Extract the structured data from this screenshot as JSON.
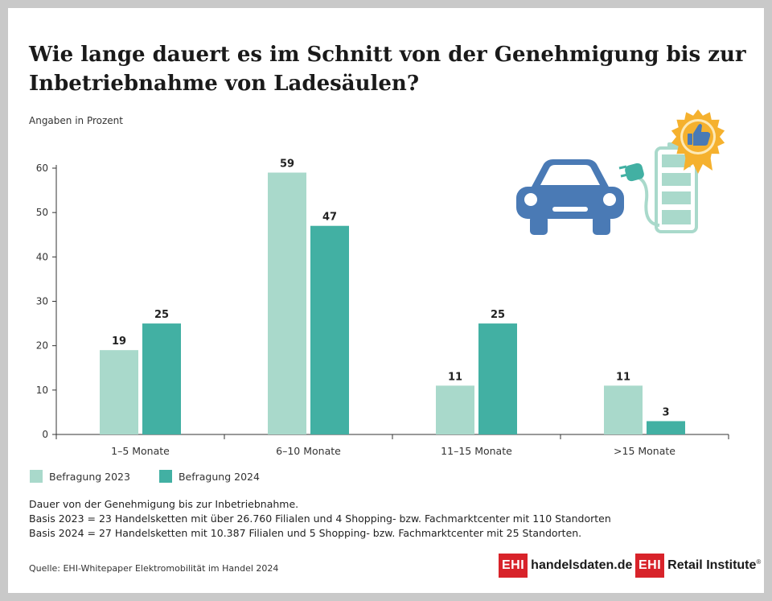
{
  "title": "Wie lange dauert es im Schnitt von der Genehmigung bis zur Inbetriebnahme von Ladesäulen?",
  "unit_label": "Angaben in Prozent",
  "chart_data": {
    "type": "bar",
    "categories": [
      "1–5 Monate",
      "6–10 Monate",
      "11–15 Monate",
      ">15 Monate"
    ],
    "series": [
      {
        "name": "Befragung 2023",
        "values": [
          19,
          59,
          11,
          11
        ],
        "color": "#a9d9cb"
      },
      {
        "name": "Befragung 2024",
        "values": [
          25,
          47,
          25,
          3
        ],
        "color": "#42b0a3"
      }
    ],
    "ylim": [
      0,
      60
    ],
    "yticks": [
      0,
      10,
      20,
      30,
      40,
      50,
      60
    ],
    "grid": false,
    "legend": "bottom-left"
  },
  "notes": [
    "Dauer von der Genehmigung bis zur Inbetriebnahme.",
    "Basis 2023 = 23 Handelsketten mit über 26.760 Filialen und 4 Shopping- bzw. Fachmarktcenter mit 110 Standorten",
    "Basis 2024 = 27 Handelsketten mit 10.387 Filialen und 5 Shopping- bzw. Fachmarktcenter mit 25 Standorten."
  ],
  "source": "Quelle: EHI-Whitepaper Elektromobilität im Handel 2024",
  "logos": {
    "box": "EHI",
    "handelsdaten": "handelsdaten.de",
    "retail": "Retail Institute",
    "reg": "®"
  },
  "illustration": {
    "icons": [
      "car-icon",
      "charging-plug-icon",
      "battery-icon",
      "thumbs-up-badge-icon"
    ],
    "car_color": "#4a7ab5",
    "battery_color": "#a9d9cb",
    "badge_color": "#f5b12e"
  }
}
